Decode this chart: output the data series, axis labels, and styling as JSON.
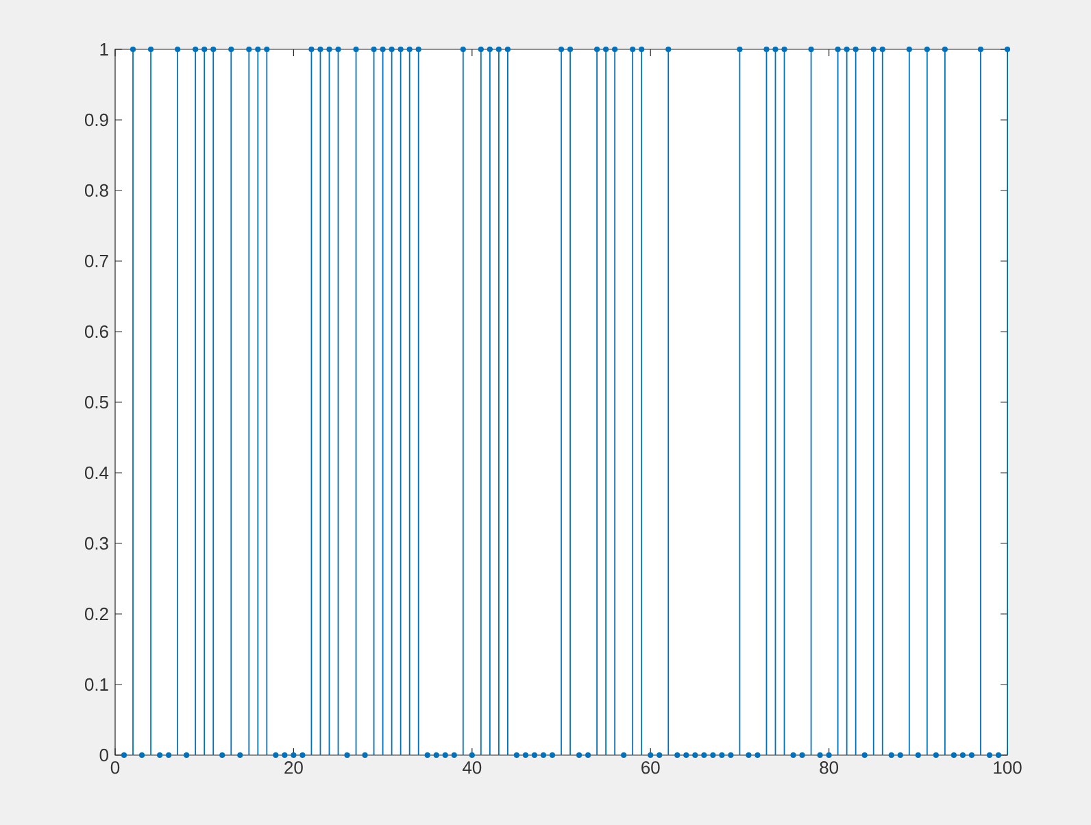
{
  "chart_data": {
    "type": "lollipop",
    "x": [
      1,
      2,
      3,
      4,
      5,
      6,
      7,
      8,
      9,
      10,
      11,
      12,
      13,
      14,
      15,
      16,
      17,
      18,
      19,
      20,
      21,
      22,
      23,
      24,
      25,
      26,
      27,
      28,
      29,
      30,
      31,
      32,
      33,
      34,
      35,
      36,
      37,
      38,
      39,
      40,
      41,
      42,
      43,
      44,
      45,
      46,
      47,
      48,
      49,
      50,
      51,
      52,
      53,
      54,
      55,
      56,
      57,
      58,
      59,
      60,
      61,
      62,
      63,
      64,
      65,
      66,
      67,
      68,
      69,
      70,
      71,
      72,
      73,
      74,
      75,
      76,
      77,
      78,
      79,
      80,
      81,
      82,
      83,
      84,
      85,
      86,
      87,
      88,
      89,
      90,
      91,
      92,
      93,
      94,
      95,
      96,
      97,
      98,
      99,
      100
    ],
    "values": [
      0,
      1,
      0,
      1,
      0,
      0,
      1,
      0,
      1,
      1,
      1,
      0,
      1,
      0,
      1,
      1,
      1,
      0,
      0,
      0,
      0,
      1,
      1,
      1,
      1,
      0,
      1,
      0,
      1,
      1,
      1,
      1,
      1,
      1,
      0,
      0,
      0,
      0,
      1,
      0,
      1,
      1,
      1,
      1,
      0,
      0,
      0,
      0,
      0,
      1,
      1,
      0,
      0,
      1,
      1,
      1,
      0,
      1,
      1,
      0,
      0,
      1,
      0,
      0,
      0,
      0,
      0,
      0,
      0,
      1,
      0,
      0,
      1,
      1,
      1,
      0,
      0,
      1,
      0,
      0,
      1,
      1,
      1,
      0,
      1,
      1,
      0,
      0,
      1,
      0,
      1,
      0,
      1,
      0,
      0,
      0,
      1,
      0,
      0,
      1
    ],
    "color": "#0072bd",
    "marker": "circle",
    "xlim": [
      0,
      100
    ],
    "xticks": [
      0,
      20,
      40,
      60,
      80,
      100
    ],
    "ylim": [
      0,
      1
    ],
    "yticks": [
      0,
      0.1,
      0.2,
      0.3,
      0.4,
      0.5,
      0.6,
      0.7,
      0.8,
      0.9,
      1
    ]
  }
}
